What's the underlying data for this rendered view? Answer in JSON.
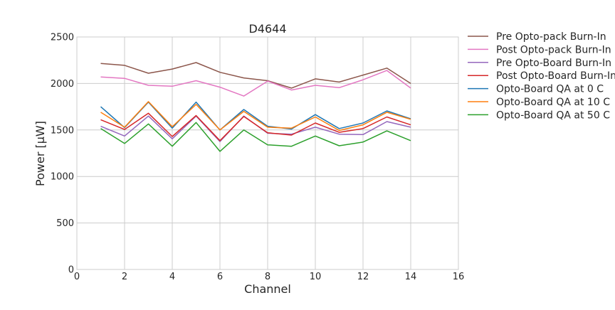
{
  "chart_data": {
    "type": "line",
    "title": "D4644",
    "xlabel": "Channel",
    "ylabel": "Power [μW]",
    "xlim": [
      0,
      16
    ],
    "ylim": [
      0,
      2500
    ],
    "xticks": [
      0,
      2,
      4,
      6,
      8,
      10,
      12,
      14,
      16
    ],
    "yticks": [
      0,
      500,
      1000,
      1500,
      2000,
      2500
    ],
    "grid": true,
    "legend_position": "outside-right",
    "x": [
      1,
      2,
      3,
      4,
      5,
      6,
      7,
      8,
      9,
      10,
      11,
      12,
      13,
      14
    ],
    "series": [
      {
        "name": "Pre Opto-pack Burn-In",
        "color": "#8c564b",
        "values": [
          2215,
          2195,
          2110,
          2155,
          2225,
          2120,
          2060,
          2030,
          1950,
          2050,
          2015,
          2090,
          2165,
          2000
        ]
      },
      {
        "name": "Post Opto-pack Burn-In",
        "color": "#e377c2",
        "values": [
          2070,
          2055,
          1980,
          1970,
          2030,
          1960,
          1865,
          2025,
          1930,
          1980,
          1955,
          2040,
          2140,
          1950
        ]
      },
      {
        "name": "Pre Opto-Board Burn-In",
        "color": "#9467bd",
        "values": [
          1540,
          1435,
          1650,
          1405,
          1650,
          1375,
          1650,
          1465,
          1455,
          1530,
          1455,
          1450,
          1590,
          1530
        ]
      },
      {
        "name": "Post Opto-Board Burn-In",
        "color": "#d62728",
        "values": [
          1610,
          1505,
          1680,
          1430,
          1655,
          1385,
          1645,
          1470,
          1445,
          1575,
          1475,
          1515,
          1640,
          1555
        ]
      },
      {
        "name": "Opto-Board QA at 0 C",
        "color": "#1f77b4",
        "values": [
          1750,
          1525,
          1800,
          1520,
          1800,
          1500,
          1720,
          1540,
          1510,
          1665,
          1515,
          1575,
          1705,
          1620
        ]
      },
      {
        "name": "Opto-Board QA at 10 C",
        "color": "#ff7f0e",
        "values": [
          1690,
          1530,
          1805,
          1535,
          1775,
          1500,
          1700,
          1530,
          1520,
          1640,
          1495,
          1555,
          1690,
          1615
        ]
      },
      {
        "name": "Opto-Board QA at 50 C",
        "color": "#2ca02c",
        "values": [
          1515,
          1355,
          1565,
          1325,
          1580,
          1270,
          1500,
          1340,
          1325,
          1435,
          1330,
          1370,
          1490,
          1385
        ]
      }
    ]
  }
}
